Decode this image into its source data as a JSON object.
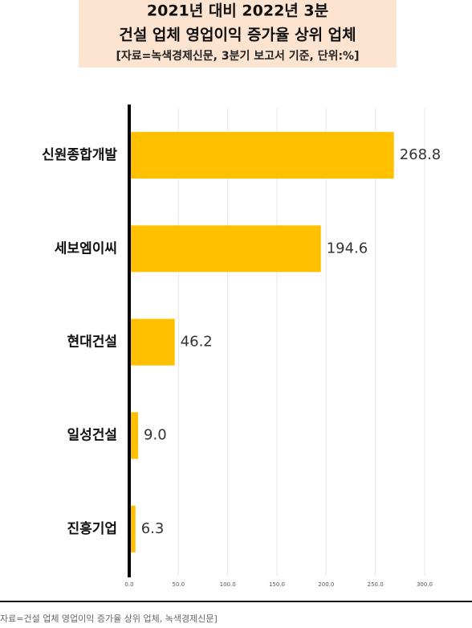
{
  "chart_data": {
    "type": "hbar",
    "title": "2021년 대비 2022년 3분",
    "subtitle": "건설 업체 영업이익 증가율 상위 업체",
    "source_note": "[자료=녹색경제신문, 3분기 보고서 기준, 단위:%]",
    "caption": "자료=건설 업체 영업이익 증가율 상위 업체, 녹색경제신문]",
    "categories": [
      "신원종합개발",
      "세보엠이씨",
      "현대건설",
      "일성건설",
      "진흥기업"
    ],
    "values": [
      268.8,
      194.6,
      46.2,
      9.0,
      6.3
    ],
    "value_labels": [
      "268.8",
      "194.6",
      "46.2",
      "9.0",
      "6.3"
    ],
    "color": "#ffc000",
    "xlim": [
      0,
      300
    ],
    "xticks": [
      {
        "value": 0,
        "label": "0.0"
      },
      {
        "value": 50,
        "label": "50.0"
      },
      {
        "value": 100,
        "label": "100.0"
      },
      {
        "value": 150,
        "label": "150.0"
      },
      {
        "value": 200,
        "label": "200.0"
      },
      {
        "value": 250,
        "label": "250.0"
      },
      {
        "value": 300,
        "label": "300.0"
      }
    ],
    "grid": true
  }
}
